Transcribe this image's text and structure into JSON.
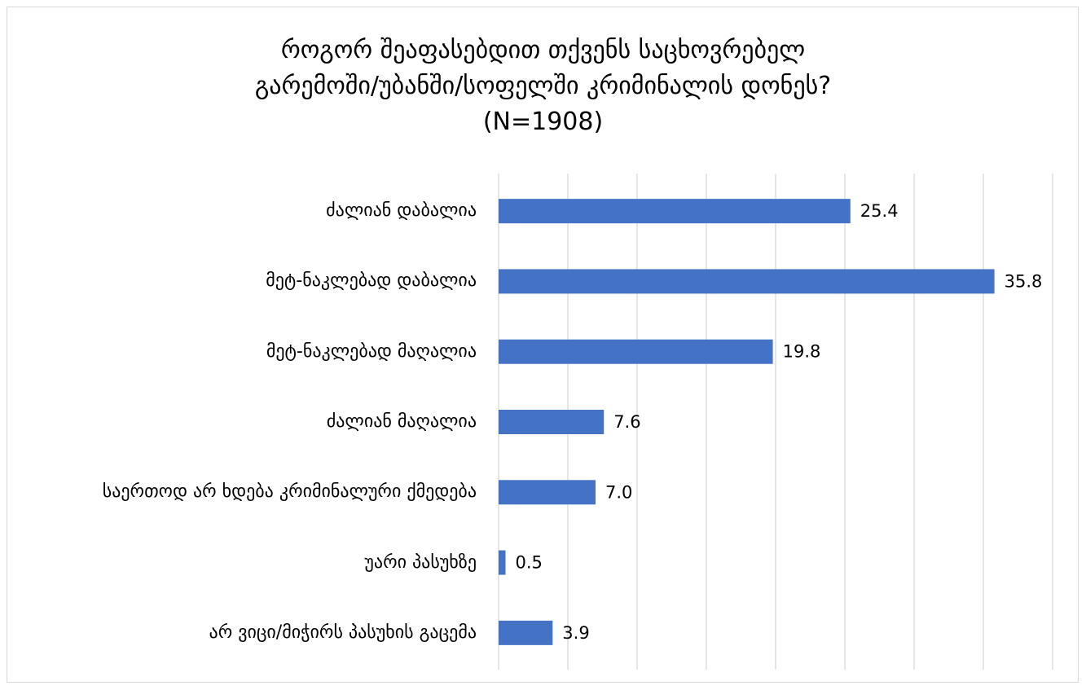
{
  "chart_data": {
    "type": "bar",
    "orientation": "horizontal",
    "title": [
      "როგორ შეაფასებდით თქვენს საცხოვრებელ",
      "გარემოში/უბანში/სოფელში კრიმინალის დონეს?",
      "(N=1908)"
    ],
    "categories": [
      "ძალიან დაბალია",
      "მეტ-ნაკლებად დაბალია",
      "მეტ-ნაკლებად მაღალია",
      "ძალიან მაღალია",
      "საერთოდ არ ხდება კრიმინალური ქმედება",
      "უარი პასუხზე",
      "არ ვიცი/მიჭირს პასუხის გაცემა"
    ],
    "values": [
      25.4,
      35.8,
      19.8,
      7.6,
      7.0,
      0.5,
      3.9
    ],
    "value_labels": [
      "25.4",
      "35.8",
      "19.8",
      "7.6",
      "7.0",
      "0.5",
      "3.9"
    ],
    "color": "#4472c4",
    "xlim": [
      0,
      40
    ],
    "xticks": [
      0,
      5,
      10,
      15,
      20,
      25,
      30,
      35,
      40
    ],
    "grid": true
  }
}
